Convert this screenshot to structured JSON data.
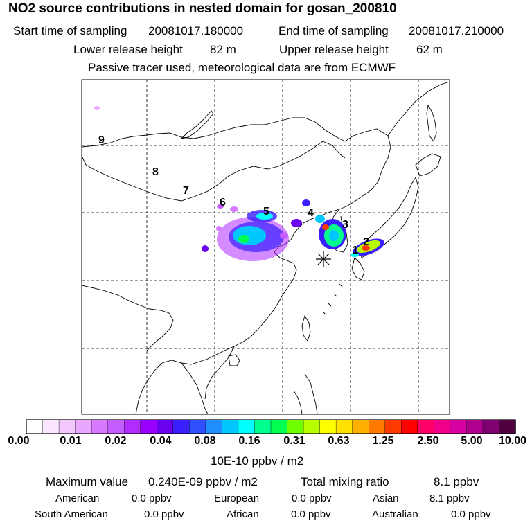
{
  "header": {
    "title": "NO2 source contributions in nested domain for gosan_200810",
    "start_label": "Start time of sampling",
    "start_value": "20081017.180000",
    "end_label": "End time of sampling",
    "end_value": "20081017.210000",
    "lower_label": "Lower release height",
    "lower_value": "82 m",
    "upper_label": "Upper release height",
    "upper_value": "62 m",
    "note": "Passive tracer used, meteorological data are from ECMWF"
  },
  "map": {
    "receptor_marker": "asterisk-receptor",
    "trajectory_labels": [
      "1",
      "2",
      "3",
      "4",
      "5",
      "6",
      "7",
      "8",
      "9"
    ]
  },
  "legend": {
    "tick_labels": [
      "0.00",
      "0.01",
      "0.02",
      "0.04",
      "0.08",
      "0.16",
      "0.31",
      "0.63",
      "1.25",
      "2.50",
      "5.00",
      "10.00"
    ],
    "unit": "10E-10 ppbv / m2",
    "colors": [
      "#ffffff",
      "#fbe6ff",
      "#f2c8ff",
      "#e8a8ff",
      "#d77aff",
      "#c55cff",
      "#b02cff",
      "#9a00ff",
      "#6a00f0",
      "#3a20ff",
      "#3050ff",
      "#1f8fff",
      "#00c8ff",
      "#00ffff",
      "#00ff8c",
      "#00ff50",
      "#70ff00",
      "#b8ff00",
      "#ffff00",
      "#ffe000",
      "#ffb000",
      "#ff7a00",
      "#ff3a00",
      "#ff0000",
      "#ff0066",
      "#f0008a",
      "#d800a0",
      "#b00090",
      "#800070",
      "#500040"
    ]
  },
  "stats": {
    "max_label": "Maximum value",
    "max_value": "0.240E-09 ppbv / m2",
    "total_label": "Total mixing ratio",
    "total_value": "8.1 ppbv",
    "american_label": "American",
    "american_value": "0.0 ppbv",
    "european_label": "European",
    "european_value": "0.0 ppbv",
    "asian_label": "Asian",
    "asian_value": "8.1 ppbv",
    "south_american_label": "South American",
    "south_american_value": "0.0 ppbv",
    "african_label": "African",
    "african_value": "0.0 ppbv",
    "australian_label": "Australian",
    "australian_value": "0.0 ppbv"
  }
}
